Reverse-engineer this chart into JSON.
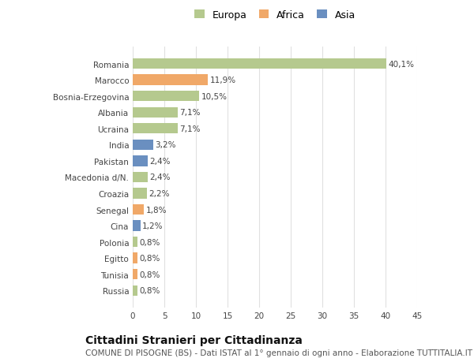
{
  "countries": [
    "Romania",
    "Marocco",
    "Bosnia-Erzegovina",
    "Albania",
    "Ucraina",
    "India",
    "Pakistan",
    "Macedonia d/N.",
    "Croazia",
    "Senegal",
    "Cina",
    "Polonia",
    "Egitto",
    "Tunisia",
    "Russia"
  ],
  "values": [
    40.1,
    11.9,
    10.5,
    7.1,
    7.1,
    3.2,
    2.4,
    2.4,
    2.2,
    1.8,
    1.2,
    0.8,
    0.8,
    0.8,
    0.8
  ],
  "labels": [
    "40,1%",
    "11,9%",
    "10,5%",
    "7,1%",
    "7,1%",
    "3,2%",
    "2,4%",
    "2,4%",
    "2,2%",
    "1,8%",
    "1,2%",
    "0,8%",
    "0,8%",
    "0,8%",
    "0,8%"
  ],
  "categories": [
    "Europa",
    "Africa",
    "Asia"
  ],
  "bar_colors": [
    "#b5c98e",
    "#f0a868",
    "#b5c98e",
    "#b5c98e",
    "#b5c98e",
    "#6a8fc0",
    "#6a8fc0",
    "#b5c98e",
    "#b5c98e",
    "#f0a868",
    "#6a8fc0",
    "#b5c98e",
    "#f0a868",
    "#f0a868",
    "#b5c98e"
  ],
  "legend_colors": [
    "#b5c98e",
    "#f0a868",
    "#6a8fc0"
  ],
  "xlim": [
    0,
    45
  ],
  "xticks": [
    0,
    5,
    10,
    15,
    20,
    25,
    30,
    35,
    40,
    45
  ],
  "title": "Cittadini Stranieri per Cittadinanza",
  "subtitle": "COMUNE DI PISOGNE (BS) - Dati ISTAT al 1° gennaio di ogni anno - Elaborazione TUTTITALIA.IT",
  "bg_color": "#ffffff",
  "plot_bg_color": "#ffffff",
  "grid_color": "#e0e0e0",
  "label_fontsize": 7.5,
  "tick_fontsize": 7.5,
  "title_fontsize": 10,
  "subtitle_fontsize": 7.5
}
